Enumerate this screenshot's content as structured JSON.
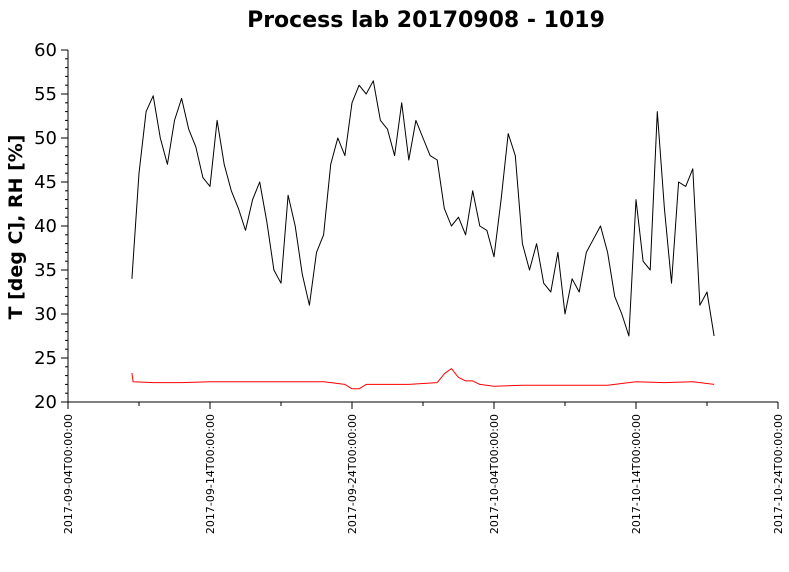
{
  "chart_data": {
    "type": "line",
    "title": "Process lab 20170908 - 1019",
    "xlabel": "",
    "ylabel": "T [deg C], RH [%]",
    "x_start": "2017-09-04",
    "x_end": "2017-10-24",
    "ylim": [
      20,
      60
    ],
    "y_ticks": [
      "20",
      "25",
      "30",
      "35",
      "40",
      "45",
      "50",
      "55",
      "60"
    ],
    "x_ticks": [
      "2017-09-04T00:00:00",
      "2017-09-14T00:00:00",
      "2017-09-24T00:00:00",
      "2017-10-04T00:00:00",
      "2017-10-14T00:00:00",
      "2017-10-24T00:00:00"
    ],
    "grid": false,
    "legend": "none",
    "series": [
      {
        "color": "#000000",
        "x": [
          "2017-09-08T12:00",
          "2017-09-09T00:00",
          "2017-09-09T12:00",
          "2017-09-10T00:00",
          "2017-09-10T12:00",
          "2017-09-11T00:00",
          "2017-09-11T12:00",
          "2017-09-12T00:00",
          "2017-09-12T12:00",
          "2017-09-13T00:00",
          "2017-09-13T12:00",
          "2017-09-14T00:00",
          "2017-09-14T12:00",
          "2017-09-15T00:00",
          "2017-09-15T12:00",
          "2017-09-16T00:00",
          "2017-09-16T12:00",
          "2017-09-17T00:00",
          "2017-09-17T12:00",
          "2017-09-18T00:00",
          "2017-09-18T12:00",
          "2017-09-19T00:00",
          "2017-09-19T12:00",
          "2017-09-20T00:00",
          "2017-09-20T12:00",
          "2017-09-21T00:00",
          "2017-09-21T12:00",
          "2017-09-22T00:00",
          "2017-09-22T12:00",
          "2017-09-23T00:00",
          "2017-09-23T12:00",
          "2017-09-24T00:00",
          "2017-09-24T12:00",
          "2017-09-25T00:00",
          "2017-09-25T12:00",
          "2017-09-26T00:00",
          "2017-09-26T12:00",
          "2017-09-27T00:00",
          "2017-09-27T12:00",
          "2017-09-28T00:00",
          "2017-09-28T12:00",
          "2017-09-29T00:00",
          "2017-09-29T12:00",
          "2017-09-30T00:00",
          "2017-09-30T12:00",
          "2017-10-01T00:00",
          "2017-10-01T12:00",
          "2017-10-02T00:00",
          "2017-10-02T12:00",
          "2017-10-03T00:00",
          "2017-10-03T12:00",
          "2017-10-04T00:00",
          "2017-10-04T12:00",
          "2017-10-05T00:00",
          "2017-10-05T12:00",
          "2017-10-06T00:00",
          "2017-10-06T12:00",
          "2017-10-07T00:00",
          "2017-10-07T12:00",
          "2017-10-08T00:00",
          "2017-10-08T12:00",
          "2017-10-09T00:00",
          "2017-10-09T12:00",
          "2017-10-10T00:00",
          "2017-10-10T12:00",
          "2017-10-11T00:00",
          "2017-10-11T12:00",
          "2017-10-12T00:00",
          "2017-10-12T12:00",
          "2017-10-13T00:00",
          "2017-10-13T12:00",
          "2017-10-14T00:00",
          "2017-10-14T12:00",
          "2017-10-15T00:00",
          "2017-10-15T12:00",
          "2017-10-16T00:00",
          "2017-10-16T12:00",
          "2017-10-17T00:00",
          "2017-10-17T12:00",
          "2017-10-18T00:00",
          "2017-10-18T12:00",
          "2017-10-19T00:00",
          "2017-10-19T12:00"
        ],
        "values": [
          34,
          46,
          53,
          54.8,
          50,
          47,
          52,
          54.5,
          51,
          49,
          45.5,
          44.5,
          52,
          47,
          44,
          42,
          39.5,
          43,
          45,
          40.5,
          35,
          33.5,
          43.5,
          40,
          34.5,
          31,
          37,
          39,
          47,
          50,
          48,
          54,
          56,
          55,
          56.5,
          52,
          51,
          48,
          54,
          47.5,
          52,
          50,
          48,
          47.5,
          42,
          40,
          41,
          39,
          44,
          40,
          39.5,
          36.5,
          43,
          50.5,
          48,
          38,
          35,
          38,
          33.5,
          32.5,
          37,
          30,
          34,
          32.5,
          37,
          38.5,
          40,
          37,
          32,
          30,
          27.5,
          43,
          36,
          35,
          53,
          42,
          33.5,
          45,
          44.5,
          46.5,
          31,
          32.5,
          27.5
        ]
      },
      {
        "color": "#ff0000",
        "x": [
          "2017-09-08T12:00",
          "2017-09-08T14:00",
          "2017-09-10T00:00",
          "2017-09-12T00:00",
          "2017-09-14T00:00",
          "2017-09-16T00:00",
          "2017-09-18T00:00",
          "2017-09-20T00:00",
          "2017-09-22T00:00",
          "2017-09-23T12:00",
          "2017-09-24T00:00",
          "2017-09-24T12:00",
          "2017-09-25T00:00",
          "2017-09-26T00:00",
          "2017-09-28T00:00",
          "2017-09-30T00:00",
          "2017-09-30T12:00",
          "2017-10-01T00:00",
          "2017-10-01T12:00",
          "2017-10-02T00:00",
          "2017-10-02T12:00",
          "2017-10-03T00:00",
          "2017-10-04T00:00",
          "2017-10-06T00:00",
          "2017-10-08T00:00",
          "2017-10-10T00:00",
          "2017-10-12T00:00",
          "2017-10-14T00:00",
          "2017-10-16T00:00",
          "2017-10-18T00:00",
          "2017-10-19T12:00"
        ],
        "values": [
          23.3,
          22.3,
          22.2,
          22.2,
          22.3,
          22.3,
          22.3,
          22.3,
          22.3,
          22.0,
          21.5,
          21.5,
          22.0,
          22.0,
          22.0,
          22.2,
          23.2,
          23.8,
          22.8,
          22.4,
          22.4,
          22.0,
          21.8,
          21.9,
          21.9,
          21.9,
          21.9,
          22.3,
          22.2,
          22.3,
          22.0
        ]
      }
    ]
  }
}
